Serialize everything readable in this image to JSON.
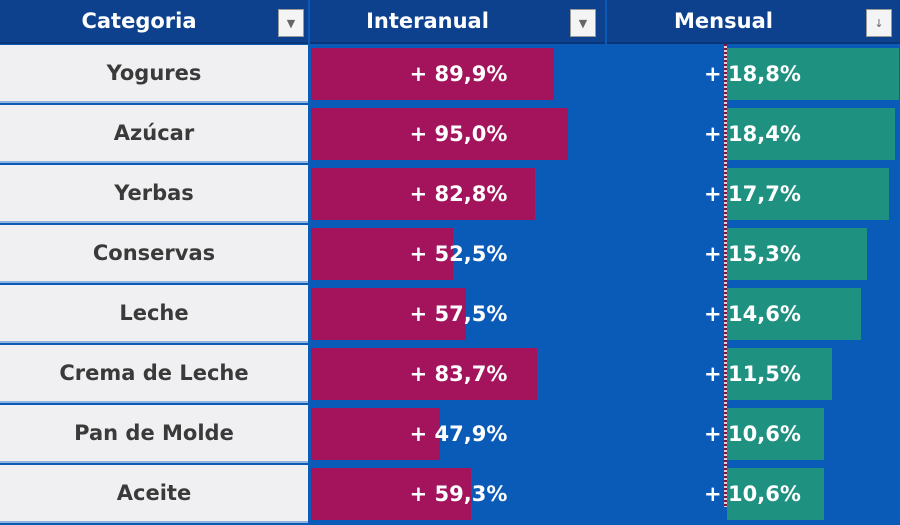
{
  "headers": {
    "category": "Categoria",
    "interanual": "Interanual",
    "mensual": "Mensual"
  },
  "icons": {
    "filter": "dropdown-arrow-icon",
    "sort": "sort-descending-icon"
  },
  "colors": {
    "header": "#0d418d",
    "cell_bg": "#0a5bb8",
    "interanual_bar": "#a3145c",
    "mensual_bar": "#1e9180"
  },
  "rows": [
    {
      "category": "Yogures",
      "interanual": "+ 89,9%",
      "interanual_value": 89.9,
      "mensual": "18,8%",
      "mensual_value": 18.8
    },
    {
      "category": "Azúcar",
      "interanual": "+ 95,0%",
      "interanual_value": 95.0,
      "mensual": "18,4%",
      "mensual_value": 18.4
    },
    {
      "category": "Yerbas",
      "interanual": "+ 82,8%",
      "interanual_value": 82.8,
      "mensual": "17,7%",
      "mensual_value": 17.7
    },
    {
      "category": "Conservas",
      "interanual": "+ 52,5%",
      "interanual_value": 52.5,
      "mensual": "15,3%",
      "mensual_value": 15.3
    },
    {
      "category": "Leche",
      "interanual": "+ 57,5%",
      "interanual_value": 57.5,
      "mensual": "14,6%",
      "mensual_value": 14.6
    },
    {
      "category": "Crema de Leche",
      "interanual": "+ 83,7%",
      "interanual_value": 83.7,
      "mensual": "11,5%",
      "mensual_value": 11.5
    },
    {
      "category": "Pan de Molde",
      "interanual": "+ 47,9%",
      "interanual_value": 47.9,
      "mensual": "10,6%",
      "mensual_value": 10.6
    },
    {
      "category": "Aceite",
      "interanual": "+ 59,3%",
      "interanual_value": 59.3,
      "mensual": "10,6%",
      "mensual_value": 10.6
    }
  ],
  "plus_sign": "+"
}
